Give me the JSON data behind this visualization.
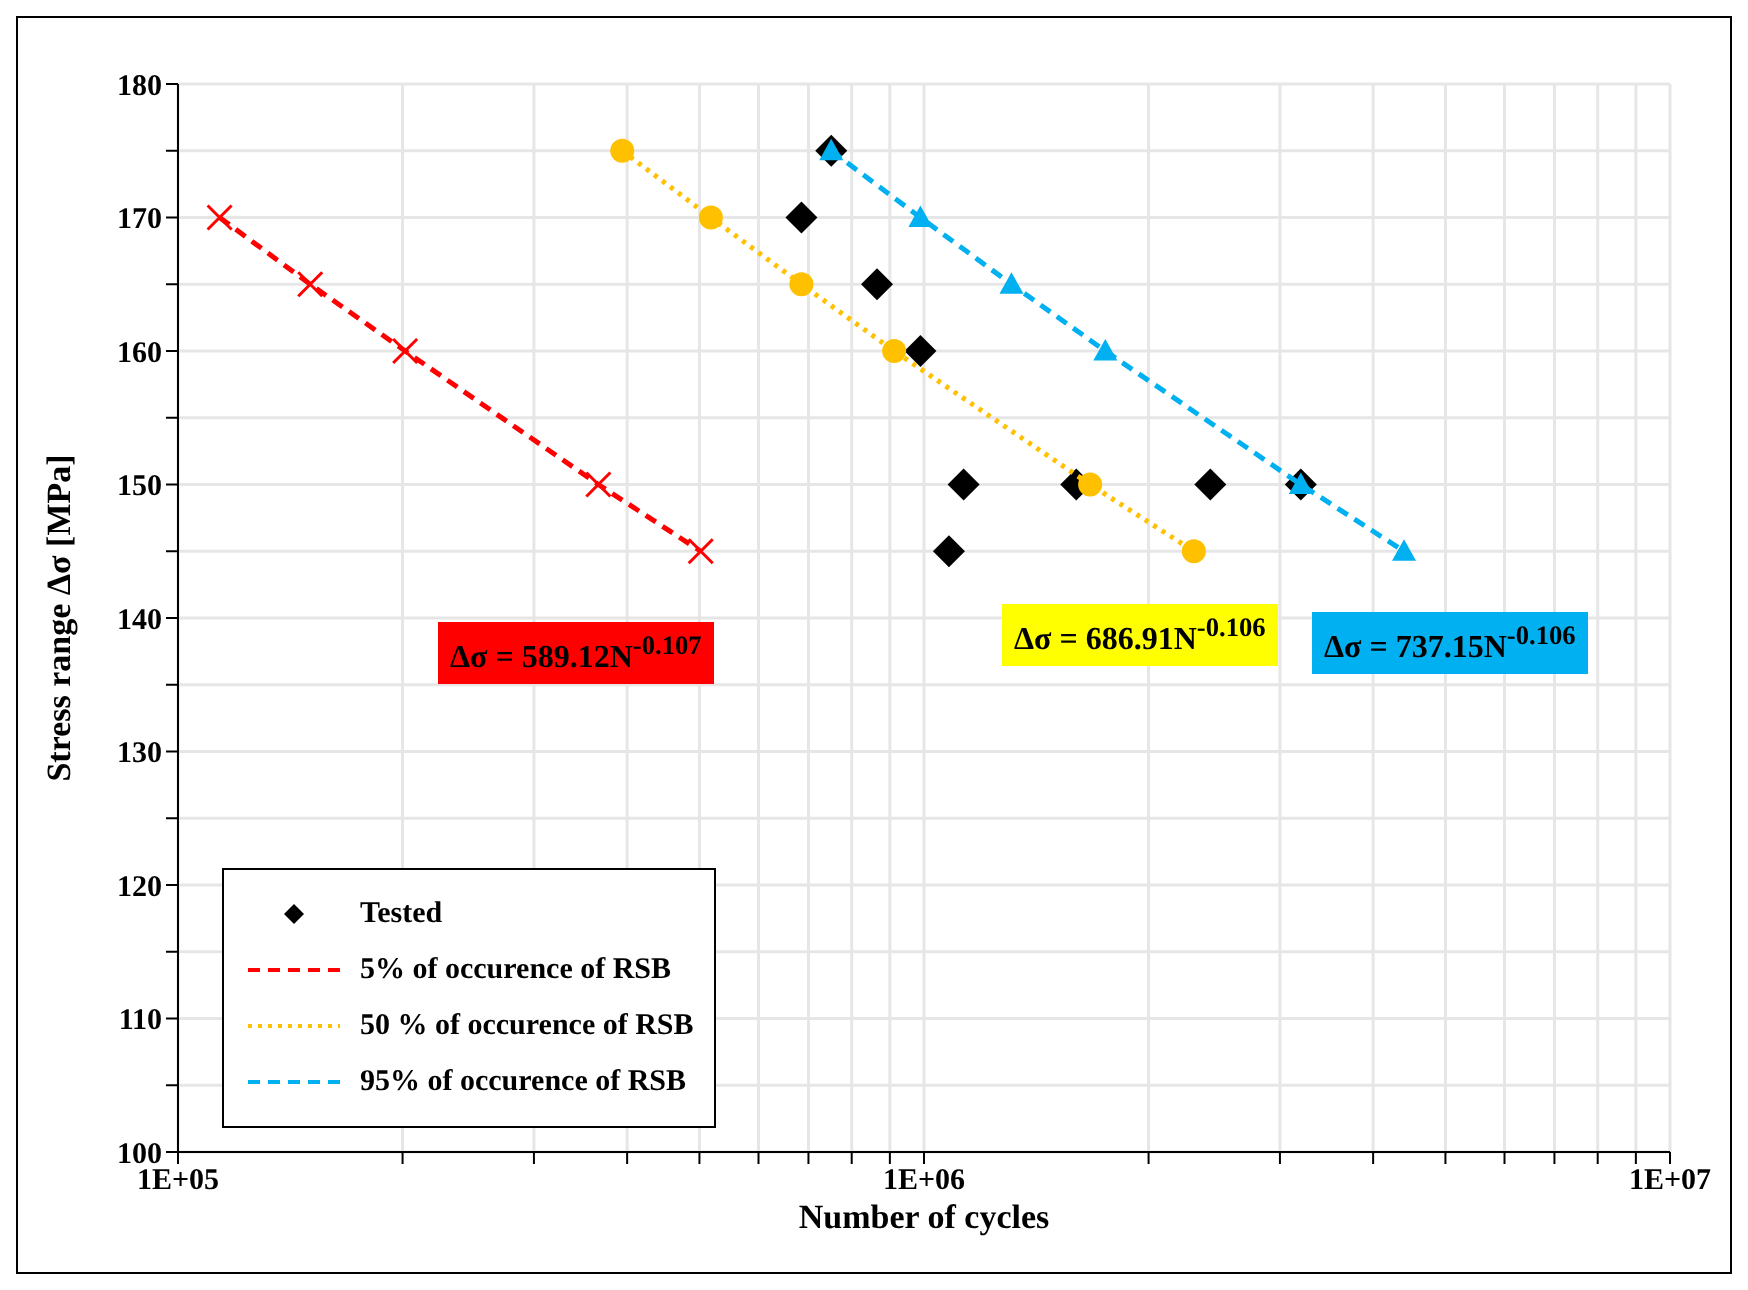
{
  "chart_data": {
    "type": "line",
    "xlabel": "Number of cycles",
    "ylabel": "Stress range  Δσ [MPa]",
    "log": "x",
    "grid": true,
    "legend": "bottom left",
    "xlim": [
      100000,
      10000000
    ],
    "xticks": [
      {
        "value": 100000,
        "label": "1E+05"
      },
      {
        "value": 200000,
        "label": null
      },
      {
        "value": 300000,
        "label": null
      },
      {
        "value": 400000,
        "label": null
      },
      {
        "value": 500000,
        "label": null
      },
      {
        "value": 600000,
        "label": null
      },
      {
        "value": 700000,
        "label": null
      },
      {
        "value": 800000,
        "label": null
      },
      {
        "value": 900000,
        "label": null
      },
      {
        "value": 1000000,
        "label": "1E+06"
      },
      {
        "value": 2000000,
        "label": null
      },
      {
        "value": 3000000,
        "label": null
      },
      {
        "value": 4000000,
        "label": null
      },
      {
        "value": 5000000,
        "label": null
      },
      {
        "value": 6000000,
        "label": null
      },
      {
        "value": 7000000,
        "label": null
      },
      {
        "value": 8000000,
        "label": null
      },
      {
        "value": 9000000,
        "label": null
      },
      {
        "value": 10000000,
        "label": "1E+07"
      }
    ],
    "ylim": [
      100,
      180
    ],
    "yticks": [
      100,
      {
        "value": 105,
        "label": null
      },
      110,
      {
        "value": 115,
        "label": null
      },
      120,
      {
        "value": 125,
        "label": null
      },
      130,
      {
        "value": 135,
        "label": null
      },
      140,
      {
        "value": 145,
        "label": null
      },
      150,
      {
        "value": 155,
        "label": null
      },
      160,
      {
        "value": 165,
        "label": null
      },
      170,
      {
        "value": 175,
        "label": null
      },
      180
    ],
    "series": [
      {
        "name": "Tested",
        "type": "scatter",
        "marker": "diamond",
        "color": "#000000",
        "x": [
          751000,
          685000,
          865000,
          989000,
          1130000,
          1080000,
          1600000,
          2420000,
          3200000
        ],
        "values": [
          175,
          170,
          165,
          160,
          150,
          145,
          150,
          150,
          150
        ]
      },
      {
        "name": "5% of occurence of RSB",
        "marker": "cross",
        "line_style": "dashed",
        "color": "#ff0000",
        "x": [
          113700,
          150400,
          201600,
          366000,
          502000
        ],
        "values": [
          170,
          165,
          160,
          150,
          145
        ]
      },
      {
        "name": "50 % of occurence of RSB",
        "marker": "circle",
        "line_style": "dotted",
        "color": "#ffc000",
        "x": [
          394000,
          518000,
          685000,
          912000,
          1670000,
          2300000
        ],
        "values": [
          175,
          170,
          165,
          160,
          150,
          145
        ]
      },
      {
        "name": "95% of occurence of RSB",
        "marker": "triangle",
        "line_style": "dashed",
        "color": "#00b0f0",
        "x": [
          751000,
          989000,
          1310000,
          1750000,
          3200000,
          4400000
        ],
        "values": [
          175,
          170,
          165,
          160,
          150,
          145
        ]
      }
    ],
    "annotations": [
      "Δσ = 589.12N$^{-0.107}$",
      "Δσ = 686.91N$^{-0.106}$",
      "Δσ = 737.15N$^{-0.106}$"
    ]
  }
}
